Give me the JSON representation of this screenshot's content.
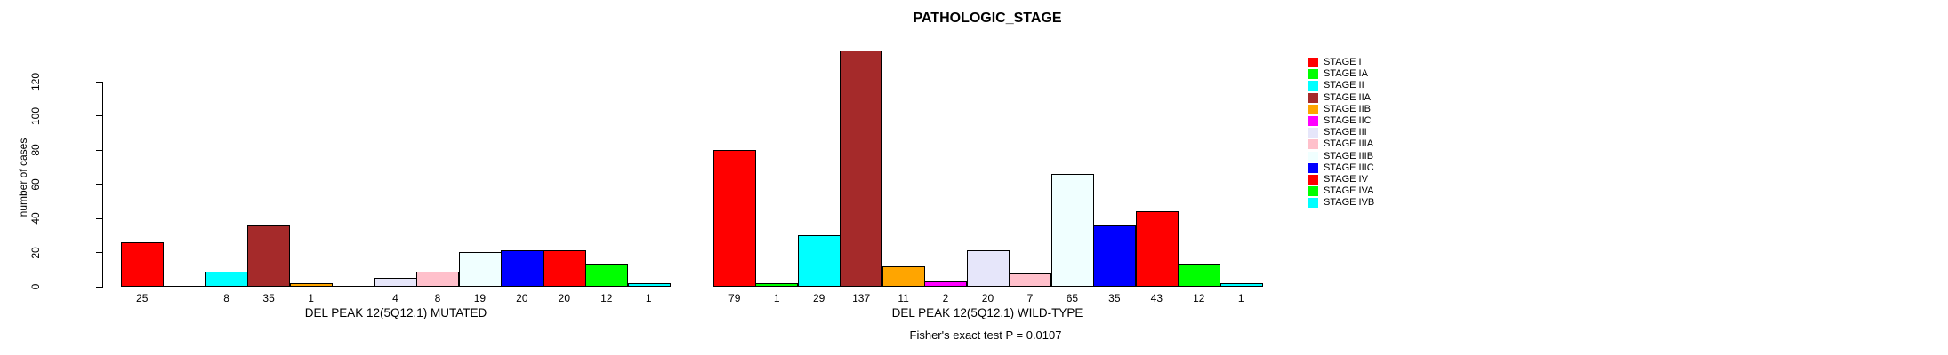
{
  "chart_data": {
    "type": "bar",
    "title": "PATHOLOGIC_STAGE",
    "ylabel": "number of cases",
    "ylim": [
      0,
      120
    ],
    "yticks": [
      0,
      20,
      40,
      60,
      80,
      100,
      120
    ],
    "grid": false,
    "legend_position": "right",
    "categories": [
      "STAGE I",
      "STAGE IA",
      "STAGE II",
      "STAGE IIA",
      "STAGE IIB",
      "STAGE IIC",
      "STAGE III",
      "STAGE IIIA",
      "STAGE IIIB",
      "STAGE IIIC",
      "STAGE IV",
      "STAGE IVA",
      "STAGE IVB"
    ],
    "colors": [
      "#FF0000",
      "#00FF00",
      "#00FFFF",
      "#A52A2A",
      "#FFA500",
      "#FF00FF",
      "#E6E6FA",
      "#FFC0CB",
      "#F0FFFF",
      "#0000FF",
      "#FF0000",
      "#00FF00",
      "#00FFFF"
    ],
    "groups": [
      {
        "xlabel": "DEL PEAK 12(5Q12.1) MUTATED",
        "values": [
          25,
          0,
          8,
          35,
          1,
          0,
          4,
          8,
          19,
          20,
          20,
          12,
          1
        ]
      },
      {
        "xlabel": "DEL PEAK 12(5Q12.1) WILD-TYPE",
        "values": [
          79,
          1,
          29,
          137,
          11,
          2,
          20,
          7,
          65,
          35,
          43,
          12,
          1
        ]
      }
    ],
    "zero_bars_unlabeled": true,
    "footer": "Fisher's exact test P = 0.0107"
  }
}
